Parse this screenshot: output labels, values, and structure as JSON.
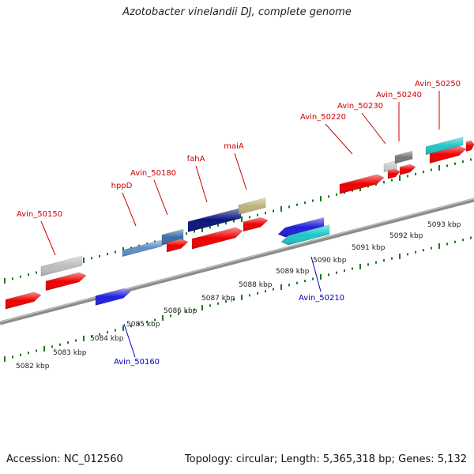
{
  "title": "Azotobacter vinelandii DJ, complete genome",
  "footer": {
    "accession": "Accession: NC_012560",
    "stats": "Topology: circular; Length: 5,365,318 bp; Genes: 5,132"
  },
  "colors": {
    "backbone": "#8c8c8c",
    "forward_tick": "#1a7a1a",
    "reverse_tick": "#1a7a1a",
    "forward_label": "#cc0000",
    "reverse_label": "#0000bb",
    "kbp_label": "#222222"
  },
  "kbp_scale": {
    "labels": [
      "5082 kbp",
      "5083 kbp",
      "5084 kbp",
      "5085 kbp",
      "5086 kbp",
      "5087 kbp",
      "5088 kbp",
      "5089 kbp",
      "5090 kbp",
      "5091 kbp",
      "5092 kbp",
      "5093 kbp"
    ]
  },
  "genes": [
    {
      "id": "g1",
      "track": "red-lower",
      "color": "#ee0000",
      "direction": "forward"
    },
    {
      "id": "g2",
      "track": "red-lower",
      "color": "#ee0000",
      "direction": "forward"
    },
    {
      "id": "g3",
      "track": "upper",
      "color": "#bdbdbd",
      "direction": "none"
    },
    {
      "id": "g4",
      "track": "reverse",
      "color": "#1f1fdd",
      "direction": "forward"
    },
    {
      "id": "g5",
      "track": "upper",
      "color": "#5d8fc9",
      "direction": "none"
    },
    {
      "id": "g6",
      "track": "upper",
      "color": "#3b6ea8",
      "direction": "none"
    },
    {
      "id": "g7",
      "track": "red-lower",
      "color": "#ee0000",
      "direction": "forward"
    },
    {
      "id": "g8",
      "track": "red-lower",
      "color": "#ee0000",
      "direction": "forward"
    },
    {
      "id": "g9",
      "track": "upper",
      "color": "#0a1580",
      "direction": "none"
    },
    {
      "id": "g10",
      "track": "upper",
      "color": "#bdb47a",
      "direction": "none"
    },
    {
      "id": "g11",
      "track": "red-lower",
      "color": "#ee0000",
      "direction": "forward"
    },
    {
      "id": "g12",
      "track": "reverse",
      "color": "#1f1fdd",
      "direction": "reverse"
    },
    {
      "id": "g13",
      "track": "reverse",
      "color": "#1fc6c6",
      "direction": "reverse"
    },
    {
      "id": "g14",
      "track": "red-lower",
      "color": "#ee0000",
      "direction": "forward"
    },
    {
      "id": "g15",
      "track": "upper",
      "color": "#cccccc",
      "direction": "none"
    },
    {
      "id": "g16",
      "track": "upper",
      "color": "#777777",
      "direction": "none"
    },
    {
      "id": "g17",
      "track": "red-lower",
      "color": "#ee0000",
      "direction": "forward"
    },
    {
      "id": "g18",
      "track": "red-lower",
      "color": "#ee0000",
      "direction": "forward"
    },
    {
      "id": "g19",
      "track": "upper",
      "color": "#1fc6c6",
      "direction": "none"
    },
    {
      "id": "g20",
      "track": "red-lower",
      "color": "#ee0000",
      "direction": "forward"
    },
    {
      "id": "g21",
      "track": "red-lower",
      "color": "#ee0000",
      "direction": "forward"
    }
  ],
  "gene_labels": [
    {
      "text": "Avin_50150",
      "strand": "forward"
    },
    {
      "text": "hppD",
      "strand": "forward"
    },
    {
      "text": "Avin_50180",
      "strand": "forward"
    },
    {
      "text": "fahA",
      "strand": "forward"
    },
    {
      "text": "maiA",
      "strand": "forward"
    },
    {
      "text": "Avin_50220",
      "strand": "forward"
    },
    {
      "text": "Avin_50230",
      "strand": "forward"
    },
    {
      "text": "Avin_50240",
      "strand": "forward"
    },
    {
      "text": "Avin_50250",
      "strand": "forward"
    },
    {
      "text": "Avin_50160",
      "strand": "reverse"
    },
    {
      "text": "Avin_50210",
      "strand": "reverse"
    }
  ]
}
